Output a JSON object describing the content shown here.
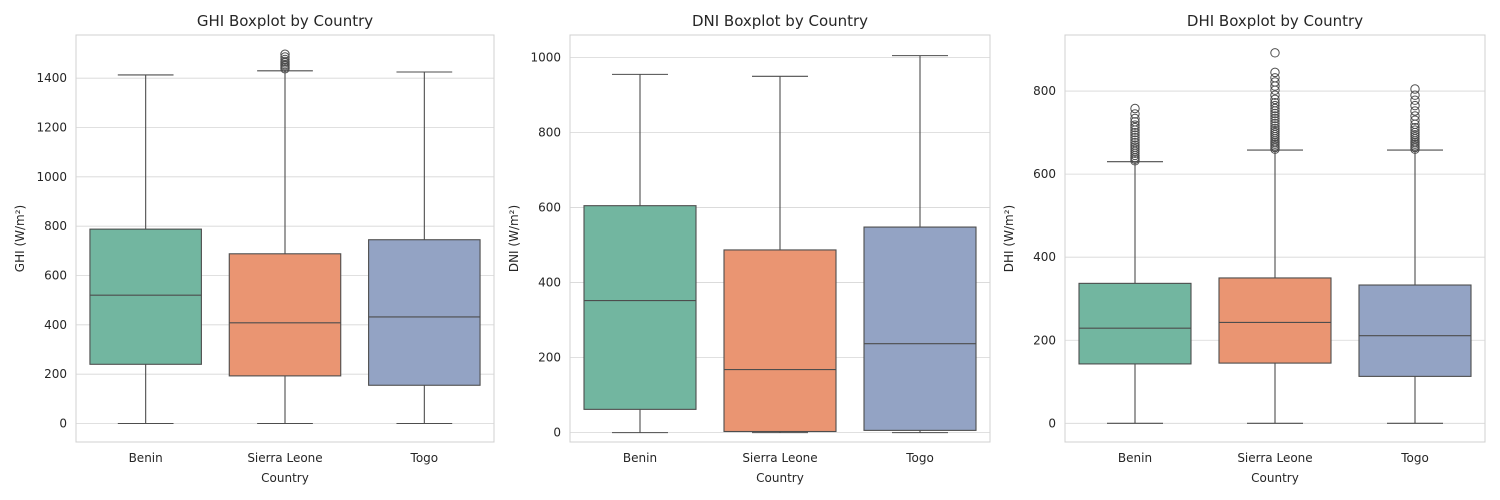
{
  "chart_data": [
    {
      "type": "boxplot",
      "title": "GHI Boxplot by Country",
      "xlabel": "Country",
      "ylabel": "GHI (W/m²)",
      "ylim": [
        -75,
        1575
      ],
      "yticks": [
        "0",
        "200",
        "400",
        "600",
        "800",
        "1000",
        "1200",
        "1400"
      ],
      "grid": true,
      "categories": [
        "Benin",
        "Sierra Leone",
        "Togo"
      ],
      "colors": [
        "#72b6a0",
        "#ea9572",
        "#93a3c4"
      ],
      "boxes": [
        {
          "min": 0,
          "q1": 240,
          "median": 520,
          "q3": 788,
          "max": 1413,
          "outliers": []
        },
        {
          "min": 0,
          "q1": 193,
          "median": 408,
          "q3": 688,
          "max": 1430,
          "outliers": [
            1438,
            1444,
            1450,
            1455,
            1462,
            1468,
            1476,
            1486,
            1497
          ]
        },
        {
          "min": 0,
          "q1": 155,
          "median": 432,
          "q3": 745,
          "max": 1425,
          "outliers": []
        }
      ]
    },
    {
      "type": "boxplot",
      "title": "DNI Boxplot by Country",
      "xlabel": "Country",
      "ylabel": "DNI (W/m²)",
      "ylim": [
        -25,
        1060
      ],
      "yticks": [
        "0",
        "200",
        "400",
        "600",
        "800",
        "1000"
      ],
      "grid": true,
      "categories": [
        "Benin",
        "Sierra Leone",
        "Togo"
      ],
      "colors": [
        "#72b6a0",
        "#ea9572",
        "#93a3c4"
      ],
      "boxes": [
        {
          "min": 0,
          "q1": 62,
          "median": 352,
          "q3": 605,
          "max": 955,
          "outliers": []
        },
        {
          "min": 0,
          "q1": 3,
          "median": 168,
          "q3": 487,
          "max": 950,
          "outliers": []
        },
        {
          "min": 0,
          "q1": 6,
          "median": 237,
          "q3": 548,
          "max": 1005,
          "outliers": []
        }
      ]
    },
    {
      "type": "boxplot",
      "title": "DHI Boxplot by Country",
      "xlabel": "Country",
      "ylabel": "DHI (W/m²)",
      "ylim": [
        -45,
        935
      ],
      "yticks": [
        "0",
        "200",
        "400",
        "600",
        "800"
      ],
      "grid": true,
      "categories": [
        "Benin",
        "Sierra Leone",
        "Togo"
      ],
      "colors": [
        "#72b6a0",
        "#ea9572",
        "#93a3c4"
      ],
      "boxes": [
        {
          "min": 0,
          "q1": 143,
          "median": 229,
          "q3": 337,
          "max": 630,
          "outliers": [
            632,
            636,
            640,
            645,
            650,
            655,
            660,
            665,
            670,
            676,
            682,
            688,
            694,
            700,
            706,
            712,
            718,
            726,
            734,
            745,
            758
          ]
        },
        {
          "min": 0,
          "q1": 145,
          "median": 243,
          "q3": 350,
          "max": 658,
          "outliers": [
            660,
            664,
            668,
            672,
            676,
            680,
            685,
            690,
            695,
            700,
            705,
            710,
            716,
            722,
            728,
            734,
            740,
            746,
            752,
            758,
            765,
            772,
            780,
            790,
            802,
            812,
            822,
            832,
            845,
            892
          ]
        },
        {
          "min": 0,
          "q1": 113,
          "median": 211,
          "q3": 333,
          "max": 658,
          "outliers": [
            660,
            664,
            668,
            672,
            676,
            680,
            685,
            690,
            695,
            700,
            706,
            712,
            720,
            730,
            740,
            752,
            765,
            778,
            790,
            805
          ]
        }
      ]
    }
  ]
}
